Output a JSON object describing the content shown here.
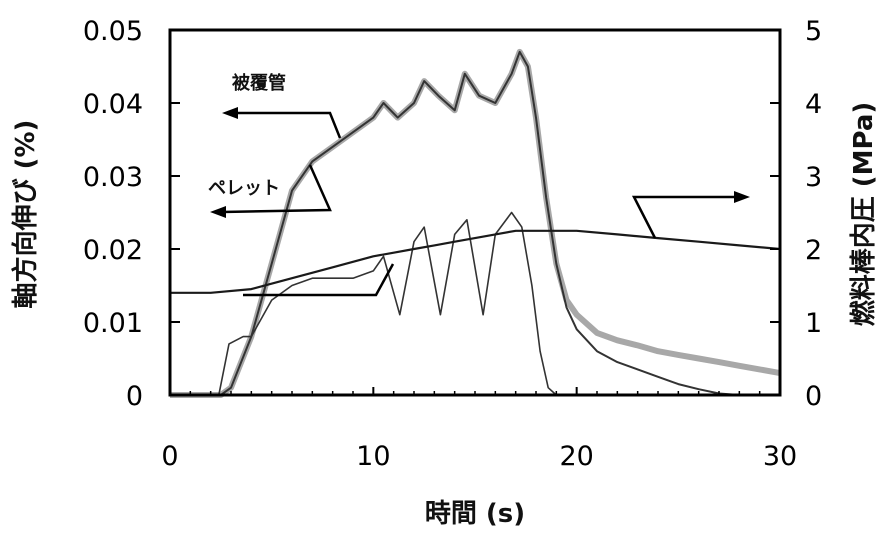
{
  "chart_data": {
    "type": "line",
    "xlabel": "時間 (s)",
    "ylabel_left": "軸方向伸び (%)",
    "ylabel_right": "燃料棒内圧 (MPa)",
    "xlim": [
      0,
      30
    ],
    "ylim_left": [
      0,
      0.05
    ],
    "ylim_right": [
      0,
      5
    ],
    "x_ticks": [
      "0",
      "10",
      "20",
      "30"
    ],
    "y_left_ticks": [
      "0",
      "0.01",
      "0.02",
      "0.03",
      "0.04",
      "0.05"
    ],
    "y_right_ticks": [
      "0",
      "1",
      "2",
      "3",
      "4",
      "5"
    ],
    "annotations": {
      "cladding": "被覆管",
      "pellet": "ペレット"
    },
    "colors": {
      "cladding": "#a8a8a8",
      "pellet": "#333333",
      "pressure": "#1a1a1a",
      "frame": "#000000"
    },
    "series": [
      {
        "name": "被覆管",
        "axis": "left",
        "x": [
          0,
          2.5,
          3.0,
          4.0,
          5.0,
          6.0,
          7.0,
          8.0,
          9.0,
          10.0,
          10.5,
          11.2,
          12.0,
          12.5,
          13.2,
          14.0,
          14.5,
          15.2,
          16.0,
          16.8,
          17.2,
          17.6,
          18.0,
          18.5,
          19.0,
          19.5,
          20.0,
          21.0,
          22.0,
          23.0,
          24.0,
          25.0,
          26.0,
          27.0,
          28.0,
          29.0,
          30.0
        ],
        "y": [
          0,
          0,
          0.001,
          0.008,
          0.018,
          0.028,
          0.032,
          0.034,
          0.036,
          0.038,
          0.04,
          0.038,
          0.04,
          0.043,
          0.041,
          0.039,
          0.044,
          0.041,
          0.04,
          0.044,
          0.047,
          0.045,
          0.038,
          0.027,
          0.018,
          0.013,
          0.011,
          0.0085,
          0.0075,
          0.0068,
          0.006,
          0.0055,
          0.005,
          0.0045,
          0.004,
          0.0035,
          0.003
        ]
      },
      {
        "name": "ペレット",
        "axis": "left",
        "x": [
          0,
          2.5,
          3.0,
          4.0,
          5.0,
          6.0,
          7.0,
          8.0,
          9.0,
          10.0,
          10.5,
          11.2,
          12.0,
          12.5,
          13.2,
          14.0,
          14.5,
          15.2,
          16.0,
          16.8,
          17.2,
          17.6,
          18.0,
          18.5,
          19.0,
          19.5,
          20.0,
          21.0,
          22.0,
          23.0,
          24.0,
          25.0,
          26.0,
          27.0,
          28.0,
          29.0,
          30.0
        ],
        "y": [
          0,
          0,
          0.001,
          0.008,
          0.018,
          0.028,
          0.032,
          0.034,
          0.036,
          0.038,
          0.04,
          0.038,
          0.04,
          0.043,
          0.041,
          0.039,
          0.044,
          0.041,
          0.04,
          0.044,
          0.047,
          0.045,
          0.038,
          0.027,
          0.018,
          0.012,
          0.009,
          0.006,
          0.0045,
          0.0035,
          0.0025,
          0.0015,
          0.0008,
          0.0002,
          0,
          0,
          0
        ]
      },
      {
        "axis": "left",
        "x": [
          0,
          2.4,
          2.9,
          3.6,
          4.0,
          5.0,
          6.0,
          7.0,
          8.0,
          9.0,
          10.0,
          10.5,
          11.3,
          12.0,
          12.5,
          13.3,
          14.0,
          14.6,
          15.4,
          16.0,
          16.8,
          17.3,
          17.8,
          18.2,
          18.6,
          19.0,
          19.5,
          20.0,
          25.0,
          30.0
        ],
        "y": [
          0,
          0,
          0.007,
          0.008,
          0.008,
          0.013,
          0.015,
          0.016,
          0.016,
          0.016,
          0.017,
          0.019,
          0.011,
          0.021,
          0.023,
          0.011,
          0.022,
          0.024,
          0.011,
          0.022,
          0.025,
          0.023,
          0.015,
          0.006,
          0.001,
          0,
          0,
          0,
          0,
          0
        ]
      },
      {
        "axis": "right",
        "x": [
          0,
          2,
          4,
          6,
          8,
          10,
          11,
          12,
          13,
          14,
          15,
          16,
          17,
          18,
          19,
          20,
          22,
          24,
          26,
          28,
          30
        ],
        "y": [
          1.4,
          1.4,
          1.45,
          1.6,
          1.75,
          1.9,
          1.95,
          2.0,
          2.05,
          2.1,
          2.15,
          2.2,
          2.25,
          2.25,
          2.25,
          2.25,
          2.2,
          2.15,
          2.1,
          2.05,
          2.0
        ]
      }
    ]
  }
}
